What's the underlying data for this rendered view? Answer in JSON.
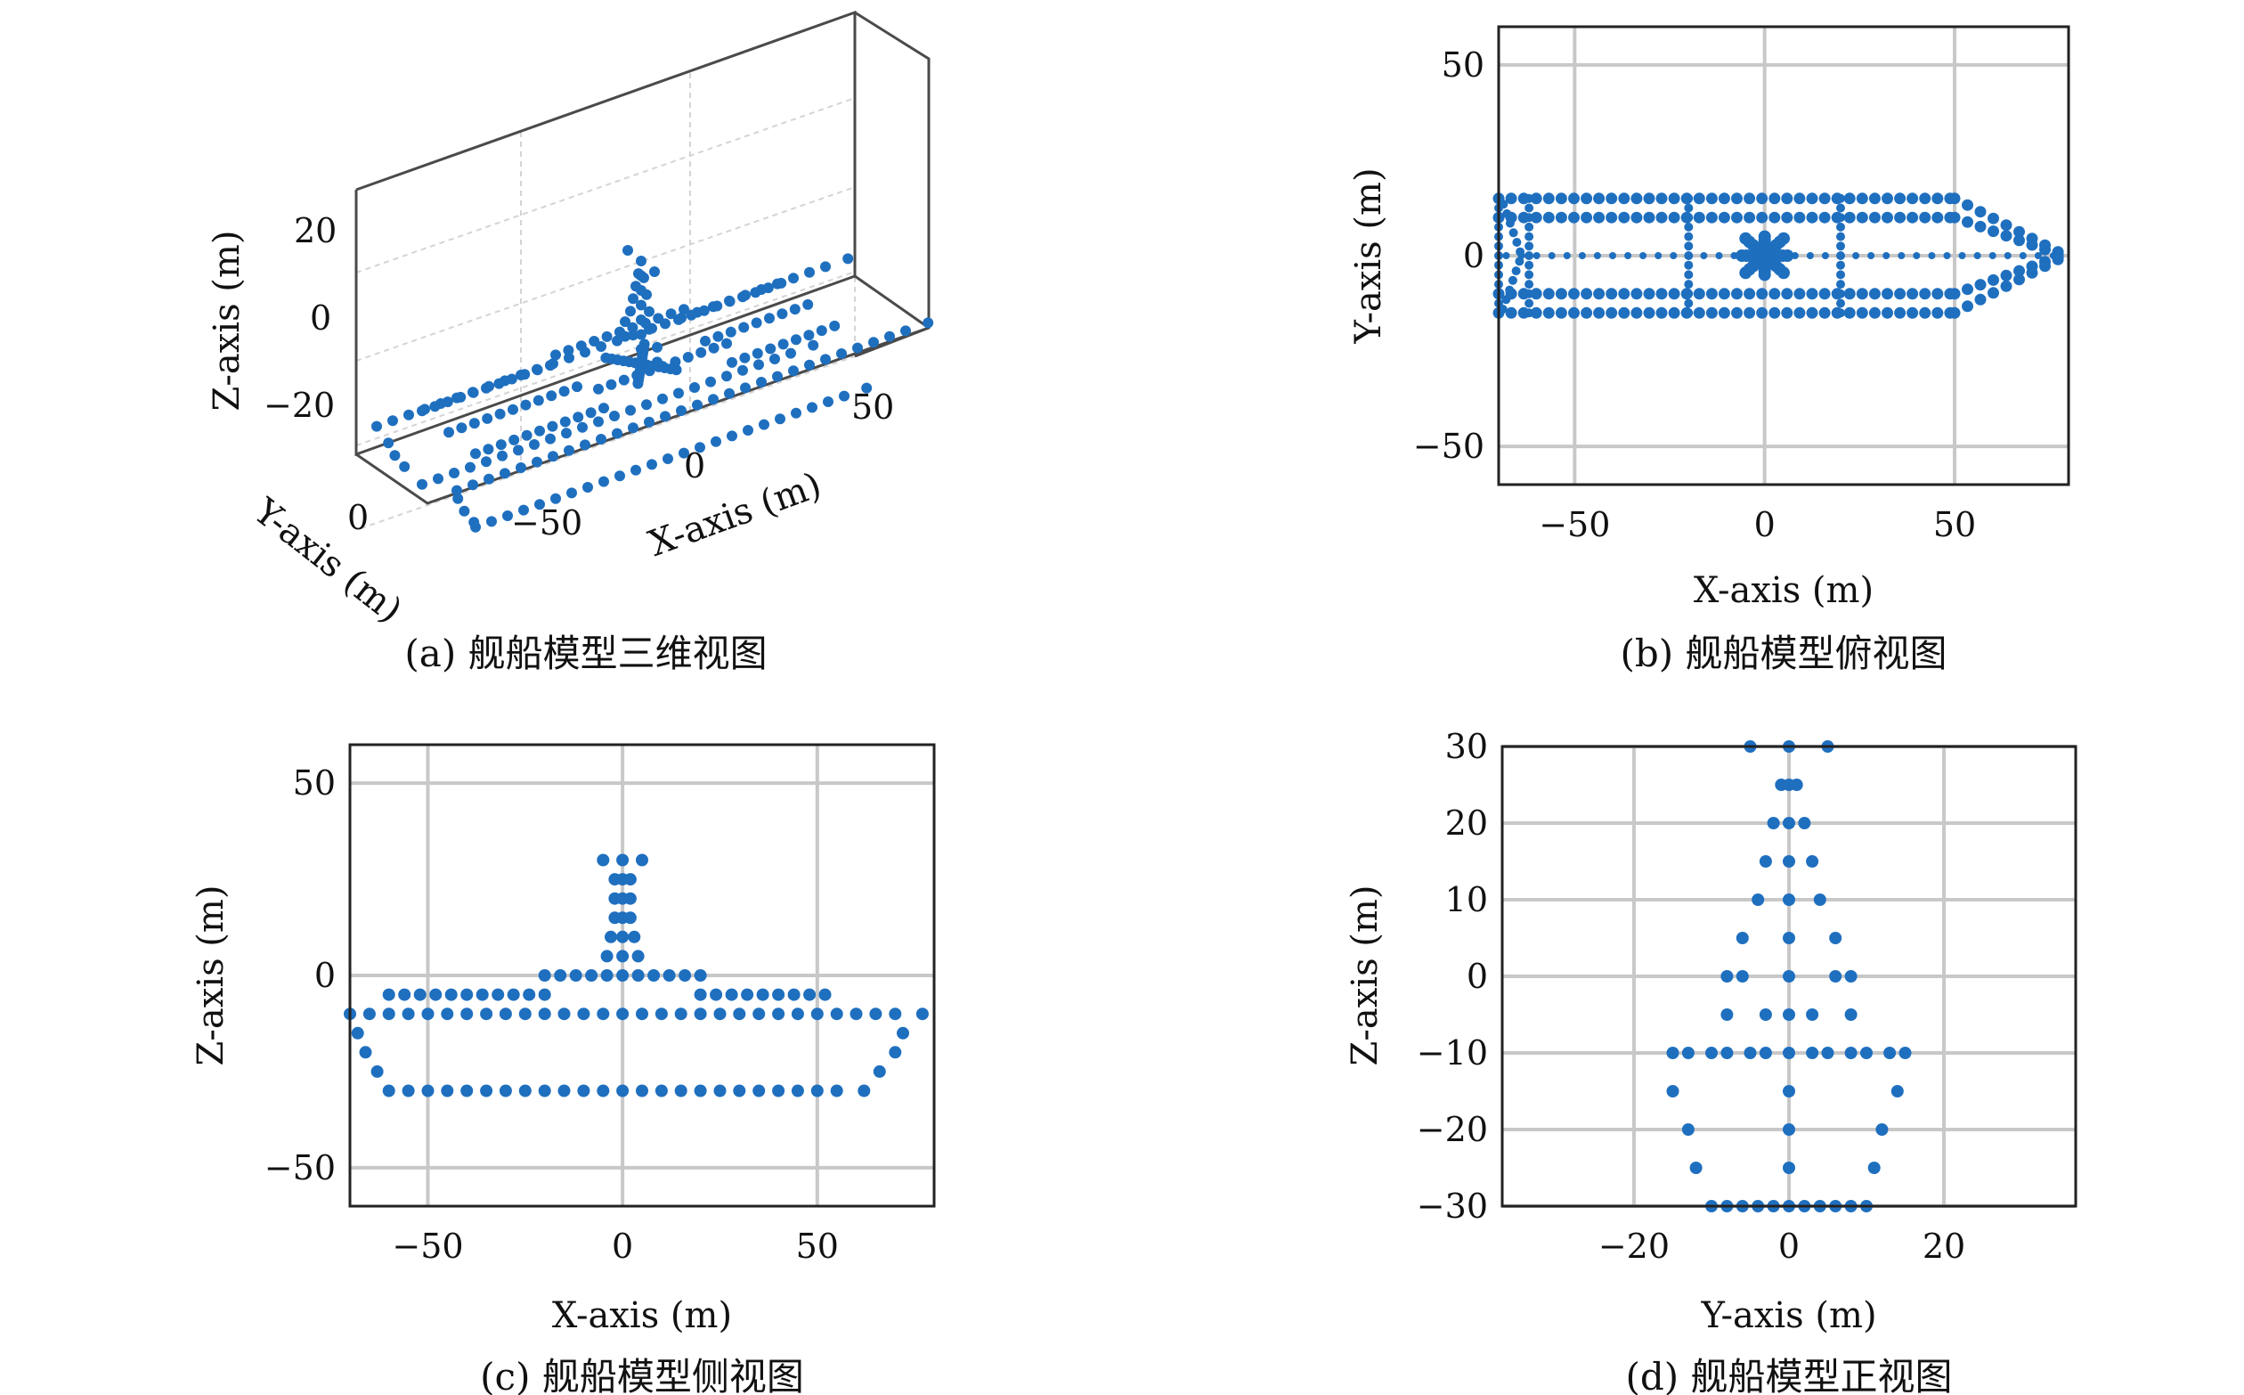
{
  "colors": {
    "marker": "#1f6fbf",
    "grid": "#c8c8c8",
    "axes": "#222222"
  },
  "chart_data": [
    {
      "id": "a",
      "type": "scatter",
      "projection": "3d",
      "caption": "(a) 舰船模型三维视图",
      "xlabel": "X-axis (m)",
      "ylabel": "Y-axis (m)",
      "zlabel": "Z-axis (m)",
      "xlim": [
        -70,
        75
      ],
      "ylim": [
        -15,
        15
      ],
      "zlim": [
        -30,
        30
      ],
      "xticks": [
        "−50",
        "0",
        "50"
      ],
      "yticks": [
        "0"
      ],
      "zticks": [
        "20",
        "0",
        "−20"
      ],
      "grid": true
    },
    {
      "id": "b",
      "type": "scatter",
      "caption": "(b) 舰船模型俯视图",
      "xlabel": "X-axis (m)",
      "ylabel": "Y-axis (m)",
      "xlim": [
        -70,
        80
      ],
      "ylim": [
        -60,
        60
      ],
      "xticks": [
        "−50",
        "0",
        "50"
      ],
      "yticks": [
        "50",
        "0",
        "−50"
      ],
      "grid": true,
      "points_description_values": {
        "hull_y_edges": [
          -15,
          -10,
          10,
          15
        ],
        "deck_x_range": [
          -70,
          50
        ],
        "bow_tip": [
          77,
          0
        ],
        "stern_x": -70,
        "bulkheads_x": [
          -62,
          -20,
          20
        ]
      }
    },
    {
      "id": "c",
      "type": "scatter",
      "caption": "(c) 舰船模型侧视图",
      "xlabel": "X-axis (m)",
      "ylabel": "Z-axis (m)",
      "xlim": [
        -70,
        80
      ],
      "ylim": [
        -60,
        60
      ],
      "xticks": [
        "−50",
        "0",
        "50"
      ],
      "yticks": [
        "50",
        "0",
        "−50"
      ],
      "grid": true,
      "rows": [
        {
          "z": 30,
          "x": [
            -5,
            0,
            5
          ]
        },
        {
          "z": 25,
          "x": [
            -2,
            0,
            2
          ]
        },
        {
          "z": 20,
          "x": [
            -2,
            0,
            2
          ]
        },
        {
          "z": 15,
          "x": [
            -2,
            0,
            2
          ]
        },
        {
          "z": 10,
          "x": [
            -3,
            0,
            3
          ]
        },
        {
          "z": 5,
          "x": [
            -4,
            0,
            4
          ]
        },
        {
          "z": 0,
          "x": [
            -20,
            -16,
            -12,
            -8,
            -4,
            0,
            4,
            8,
            12,
            16,
            20
          ]
        },
        {
          "z": -5,
          "x": [
            -60,
            -56,
            -52,
            -48,
            -44,
            -40,
            -36,
            -32,
            -28,
            -24,
            -20,
            20,
            24,
            28,
            32,
            36,
            40,
            44,
            48,
            52
          ]
        },
        {
          "z": -10,
          "x": [
            -70,
            -65,
            -60,
            -55,
            -50,
            -45,
            -40,
            -35,
            -30,
            -25,
            -20,
            -15,
            -10,
            -5,
            0,
            5,
            10,
            15,
            20,
            25,
            30,
            35,
            40,
            45,
            50,
            55,
            60,
            65,
            70,
            77
          ]
        },
        {
          "z": -15,
          "x": [
            -68,
            72
          ]
        },
        {
          "z": -20,
          "x": [
            -66,
            70
          ]
        },
        {
          "z": -25,
          "x": [
            -63,
            66
          ]
        },
        {
          "z": -30,
          "x": [
            -60,
            -55,
            -50,
            -45,
            -40,
            -35,
            -30,
            -25,
            -20,
            -15,
            -10,
            -5,
            0,
            5,
            10,
            15,
            20,
            25,
            30,
            35,
            40,
            45,
            50,
            55,
            62
          ]
        }
      ]
    },
    {
      "id": "d",
      "type": "scatter",
      "caption": "(d) 舰船模型正视图",
      "xlabel": "Y-axis (m)",
      "ylabel": "Z-axis (m)",
      "xlim": [
        -37,
        37
      ],
      "ylim": [
        -30,
        30
      ],
      "xticks": [
        "−20",
        "0",
        "20"
      ],
      "yticks": [
        "30",
        "20",
        "10",
        "0",
        "−10",
        "−20",
        "−30"
      ],
      "grid": true,
      "rows": [
        {
          "z": 30,
          "y": [
            -5,
            0,
            5
          ]
        },
        {
          "z": 25,
          "y": [
            -1,
            0,
            1
          ]
        },
        {
          "z": 20,
          "y": [
            -2,
            0,
            2
          ]
        },
        {
          "z": 15,
          "y": [
            -3,
            0,
            3
          ]
        },
        {
          "z": 10,
          "y": [
            -4,
            0,
            4
          ]
        },
        {
          "z": 5,
          "y": [
            -6,
            0,
            6
          ]
        },
        {
          "z": 0,
          "y": [
            -8,
            -6,
            0,
            6,
            8
          ]
        },
        {
          "z": -5,
          "y": [
            -8,
            -3,
            0,
            3,
            8
          ]
        },
        {
          "z": -10,
          "y": [
            -15,
            -13,
            -10,
            -8,
            -5,
            -3,
            0,
            3,
            5,
            8,
            10,
            13,
            15
          ]
        },
        {
          "z": -15,
          "y": [
            -15,
            0,
            14
          ]
        },
        {
          "z": -20,
          "y": [
            -13,
            0,
            12
          ]
        },
        {
          "z": -25,
          "y": [
            -12,
            0,
            11
          ]
        },
        {
          "z": -30,
          "y": [
            -10,
            -8,
            -6,
            -4,
            -2,
            0,
            2,
            4,
            6,
            8,
            10
          ]
        }
      ]
    }
  ]
}
